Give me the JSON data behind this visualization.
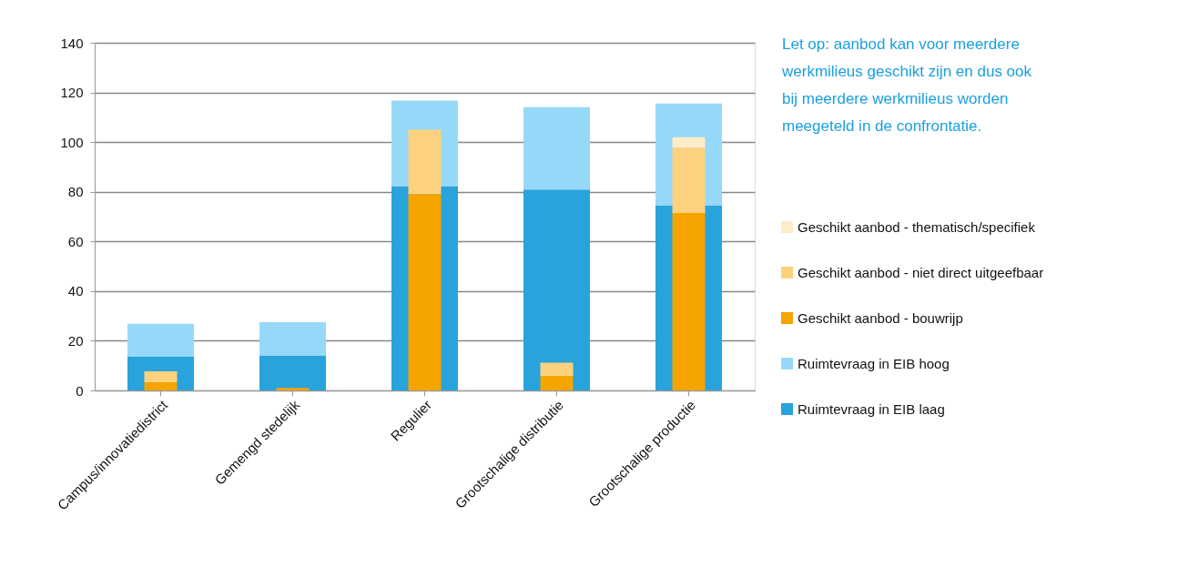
{
  "chart_data": {
    "type": "bar",
    "categories": [
      "Campus/innovatiedistrict",
      "Gemengd stedelijk",
      "Regulier",
      "Grootschalige distributie",
      "Grootschalige productie"
    ],
    "series": [
      {
        "name": "Ruimtevraag in EIB laag",
        "color": "#29a3dc",
        "base": [
          0,
          0,
          0,
          0,
          0
        ],
        "values": [
          13.7,
          14.1,
          82.3,
          80.9,
          74.4
        ]
      },
      {
        "name": "Ruimtevraag in EIB hoog",
        "color": "#96d8f8",
        "base": [
          13.7,
          14.1,
          82.3,
          80.9,
          74.4
        ],
        "values": [
          13.1,
          13.4,
          34.4,
          33.2,
          41.1
        ]
      },
      {
        "name": "Geschikt aanbod - bouwrijp",
        "color": "#f5a400",
        "base": [
          0,
          0,
          0,
          0,
          0
        ],
        "values": [
          3.3,
          1.0,
          79.1,
          5.9,
          71.5
        ]
      },
      {
        "name": "Geschikt aanbod - niet direct uitgeefbaar",
        "color": "#fdd27e",
        "base": [
          3.3,
          null,
          79.1,
          5.9,
          71.5
        ],
        "values": [
          4.4,
          null,
          25.9,
          5.3,
          26.3
        ]
      },
      {
        "name": "Geschikt aanbod - thematisch/specifiek",
        "color": "#fdecc8",
        "base": [
          null,
          null,
          null,
          null,
          97.8
        ],
        "values": [
          null,
          null,
          null,
          null,
          4.2
        ]
      }
    ],
    "ylim": [
      0,
      140
    ],
    "yticks": [
      0,
      20,
      40,
      60,
      80,
      100,
      120,
      140
    ],
    "grid": "y",
    "legend": "right",
    "annotations": [
      "Let op: aanbod kan voor meerdere werkmilieus geschikt zijn en dus ook bij meerdere werkmilieus worden meegeteld in de confrontatie."
    ]
  }
}
